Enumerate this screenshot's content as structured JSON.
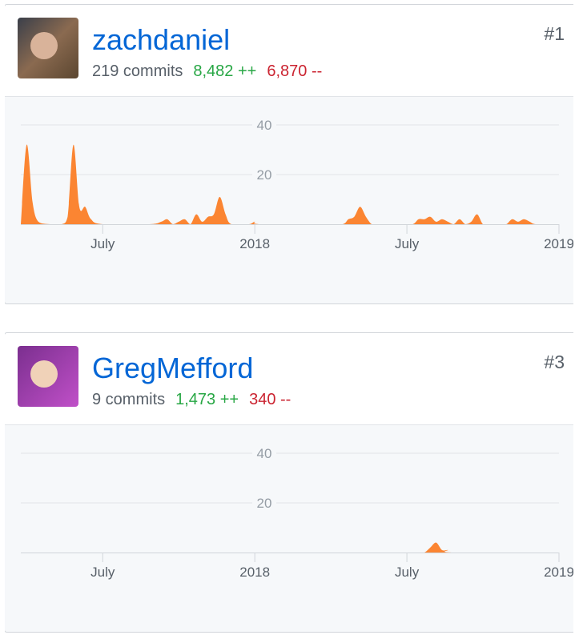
{
  "contributors": [
    {
      "username": "zachdaniel",
      "rank": "#1",
      "commits": "219 commits",
      "additions": "8,482 ++",
      "deletions": "6,870 --",
      "chart": {
        "type": "area",
        "color": "#fb8532",
        "x": [
          0,
          1,
          2,
          3,
          5,
          7,
          8,
          9,
          10,
          11,
          12,
          14,
          22,
          24,
          25,
          26,
          27,
          28,
          29,
          30,
          31,
          32,
          33,
          34,
          35,
          36,
          39,
          40,
          41,
          52,
          55,
          56,
          57,
          58,
          59,
          60,
          61,
          65,
          67,
          68,
          69,
          70,
          71,
          72,
          73,
          74,
          75,
          76,
          77,
          78,
          79,
          80,
          82,
          83,
          84,
          85,
          86,
          87,
          88,
          91
        ],
        "values": [
          0,
          32,
          9,
          1,
          0,
          0,
          3,
          32,
          7,
          7,
          2,
          0,
          0,
          1,
          2,
          0,
          1,
          2,
          0,
          4,
          1,
          3,
          4,
          11,
          4,
          0,
          0,
          1,
          0,
          0,
          0,
          2,
          3,
          7,
          3,
          0,
          0,
          0,
          0,
          2,
          2,
          3,
          1,
          2,
          1,
          0,
          2,
          0,
          1,
          4,
          0,
          0,
          0,
          0,
          2,
          1,
          2,
          1,
          0,
          0
        ],
        "xlim": [
          0,
          92
        ],
        "ylim": [
          0,
          50
        ],
        "xticks": [
          {
            "value": 14,
            "label": "July"
          },
          {
            "value": 40,
            "label": "2018"
          },
          {
            "value": 66,
            "label": "July"
          },
          {
            "value": 92,
            "label": "2019"
          }
        ],
        "yticks": [
          20,
          40
        ],
        "grid": true
      }
    },
    {
      "username": "GregMefford",
      "rank": "#3",
      "commits": "9 commits",
      "additions": "1,473 ++",
      "deletions": "340 --",
      "chart": {
        "type": "area",
        "color": "#fb8532",
        "x": [
          0,
          68,
          69,
          70,
          71,
          72,
          73,
          74,
          91
        ],
        "values": [
          0,
          0,
          0,
          2,
          4,
          1,
          1,
          0,
          0
        ],
        "xlim": [
          0,
          92
        ],
        "ylim": [
          0,
          50
        ],
        "xticks": [
          {
            "value": 14,
            "label": "July"
          },
          {
            "value": 40,
            "label": "2018"
          },
          {
            "value": 66,
            "label": "July"
          },
          {
            "value": 92,
            "label": "2019"
          }
        ],
        "yticks": [
          20,
          40
        ],
        "grid": true
      }
    }
  ]
}
